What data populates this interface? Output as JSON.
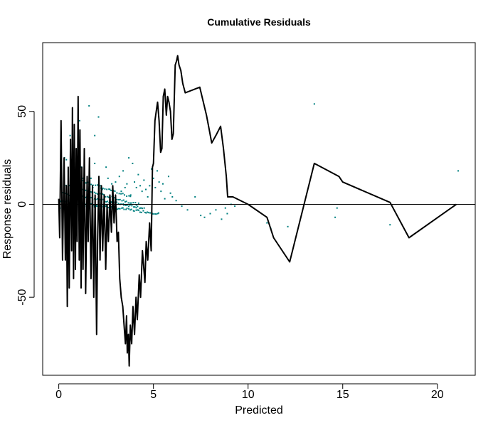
{
  "colors": {
    "background": "#ffffff",
    "axis": "#000000",
    "cumulative_line": "#000000",
    "points": "#008080",
    "reference_line": "#000000"
  },
  "chart_data": {
    "type": "scatter",
    "title": "Cumulative Residuals",
    "xlabel": "Predicted",
    "ylabel": "Response  residuals",
    "xlim": [
      -0.85,
      22.0
    ],
    "ylim": [
      -92,
      87
    ],
    "x_ticks": [
      0,
      5,
      10,
      15,
      20
    ],
    "x_tick_labels": [
      "0",
      "5",
      "10",
      "15",
      "20"
    ],
    "y_ticks": [
      -50,
      0,
      50
    ],
    "y_tick_labels": [
      "-50",
      "0",
      "50"
    ],
    "reference_line_y": 0,
    "grid": false,
    "series": [
      {
        "kind": "line",
        "values": [
          [
            0.0,
            3
          ],
          [
            0.05,
            -18
          ],
          [
            0.12,
            45
          ],
          [
            0.2,
            -30
          ],
          [
            0.28,
            25
          ],
          [
            0.35,
            -30
          ],
          [
            0.4,
            10
          ],
          [
            0.45,
            -55
          ],
          [
            0.5,
            20
          ],
          [
            0.55,
            -45
          ],
          [
            0.62,
            35
          ],
          [
            0.68,
            -25
          ],
          [
            0.72,
            52
          ],
          [
            0.78,
            -40
          ],
          [
            0.82,
            43
          ],
          [
            0.88,
            -35
          ],
          [
            0.92,
            30
          ],
          [
            0.97,
            -20
          ],
          [
            1.02,
            58
          ],
          [
            1.08,
            -30
          ],
          [
            1.12,
            40
          ],
          [
            1.18,
            -45
          ],
          [
            1.22,
            20
          ],
          [
            1.28,
            -35
          ],
          [
            1.35,
            30
          ],
          [
            1.42,
            -48
          ],
          [
            1.5,
            15
          ],
          [
            1.55,
            -20
          ],
          [
            1.62,
            25
          ],
          [
            1.7,
            -40
          ],
          [
            1.78,
            10
          ],
          [
            1.85,
            -50
          ],
          [
            1.92,
            5
          ],
          [
            2.0,
            -70
          ],
          [
            2.05,
            -20
          ],
          [
            2.12,
            15
          ],
          [
            2.18,
            -30
          ],
          [
            2.25,
            10
          ],
          [
            2.32,
            -25
          ],
          [
            2.4,
            5
          ],
          [
            2.48,
            -35
          ],
          [
            2.55,
            0
          ],
          [
            2.62,
            -20
          ],
          [
            2.7,
            5
          ],
          [
            2.78,
            -15
          ],
          [
            2.85,
            10
          ],
          [
            2.92,
            -10
          ],
          [
            3.0,
            5
          ],
          [
            3.08,
            -20
          ],
          [
            3.15,
            -15
          ],
          [
            3.22,
            -40
          ],
          [
            3.3,
            -50
          ],
          [
            3.38,
            -55
          ],
          [
            3.45,
            -65
          ],
          [
            3.52,
            -75
          ],
          [
            3.58,
            -60
          ],
          [
            3.62,
            -80
          ],
          [
            3.68,
            -70
          ],
          [
            3.72,
            -87
          ],
          [
            3.78,
            -65
          ],
          [
            3.85,
            -75
          ],
          [
            3.92,
            -55
          ],
          [
            4.0,
            -70
          ],
          [
            4.08,
            -50
          ],
          [
            4.15,
            -62
          ],
          [
            4.25,
            -38
          ],
          [
            4.32,
            -50
          ],
          [
            4.42,
            -25
          ],
          [
            4.55,
            -42
          ],
          [
            4.62,
            -20
          ],
          [
            4.7,
            -30
          ],
          [
            4.8,
            -10
          ],
          [
            4.88,
            -25
          ],
          [
            4.95,
            20
          ],
          [
            5.0,
            22
          ],
          [
            5.08,
            45
          ],
          [
            5.15,
            50
          ],
          [
            5.22,
            55
          ],
          [
            5.3,
            45
          ],
          [
            5.38,
            28
          ],
          [
            5.45,
            30
          ],
          [
            5.52,
            58
          ],
          [
            5.6,
            62
          ],
          [
            5.68,
            48
          ],
          [
            5.75,
            58
          ],
          [
            5.82,
            55
          ],
          [
            5.9,
            50
          ],
          [
            5.98,
            35
          ],
          [
            6.05,
            38
          ],
          [
            6.15,
            75
          ],
          [
            6.22,
            77
          ],
          [
            6.28,
            80
          ],
          [
            6.35,
            75
          ],
          [
            6.45,
            72
          ],
          [
            6.55,
            65
          ],
          [
            6.68,
            60
          ],
          [
            7.45,
            63
          ],
          [
            7.8,
            48
          ],
          [
            7.95,
            40
          ],
          [
            8.08,
            33
          ],
          [
            8.35,
            38
          ],
          [
            8.55,
            42
          ],
          [
            8.7,
            30
          ],
          [
            8.85,
            15
          ],
          [
            8.92,
            4
          ],
          [
            9.2,
            4
          ],
          [
            10.0,
            0
          ],
          [
            11.0,
            -7
          ],
          [
            11.35,
            -18
          ],
          [
            12.2,
            -31
          ],
          [
            13.5,
            22
          ],
          [
            14.8,
            15
          ],
          [
            15.0,
            12
          ],
          [
            17.5,
            1
          ],
          [
            18.5,
            -18
          ],
          [
            21.0,
            0
          ]
        ]
      },
      {
        "kind": "points",
        "values": [
          [
            0.3,
            25
          ],
          [
            0.6,
            37
          ],
          [
            1.1,
            45
          ],
          [
            1.6,
            53
          ],
          [
            2.1,
            47
          ],
          [
            1.9,
            37
          ],
          [
            0.4,
            24
          ],
          [
            0.5,
            18
          ],
          [
            0.9,
            17
          ],
          [
            1.2,
            20
          ],
          [
            1.3,
            14
          ],
          [
            1.5,
            12
          ],
          [
            1.7,
            14
          ],
          [
            1.8,
            9
          ],
          [
            1.9,
            22
          ],
          [
            2.2,
            10
          ],
          [
            2.3,
            8
          ],
          [
            2.5,
            20
          ],
          [
            2.6,
            14
          ],
          [
            2.7,
            8
          ],
          [
            2.8,
            11
          ],
          [
            3.0,
            12
          ],
          [
            3.2,
            15
          ],
          [
            3.3,
            7
          ],
          [
            3.4,
            18
          ],
          [
            3.5,
            9
          ],
          [
            3.6,
            11
          ],
          [
            3.7,
            25
          ],
          [
            3.8,
            5
          ],
          [
            3.9,
            22
          ],
          [
            4.0,
            12
          ],
          [
            4.1,
            9
          ],
          [
            4.2,
            16
          ],
          [
            4.3,
            10
          ],
          [
            4.4,
            7
          ],
          [
            4.5,
            13
          ],
          [
            4.6,
            8
          ],
          [
            4.7,
            4
          ],
          [
            4.8,
            10
          ],
          [
            4.9,
            19
          ],
          [
            5.0,
            14
          ],
          [
            5.1,
            9
          ],
          [
            5.2,
            18
          ],
          [
            5.3,
            12
          ],
          [
            5.4,
            7
          ],
          [
            5.5,
            11
          ],
          [
            5.6,
            3
          ],
          [
            5.8,
            15
          ],
          [
            5.9,
            6
          ],
          [
            6.0,
            4
          ],
          [
            6.2,
            2
          ],
          [
            6.5,
            -1
          ],
          [
            6.8,
            -3
          ],
          [
            7.2,
            4
          ],
          [
            7.5,
            -6
          ],
          [
            7.7,
            -7
          ],
          [
            8.0,
            -5
          ],
          [
            8.3,
            -3
          ],
          [
            8.6,
            -8
          ],
          [
            8.8,
            -2
          ],
          [
            8.9,
            -5
          ],
          [
            9.1,
            0
          ],
          [
            9.3,
            -1
          ],
          [
            11.0,
            -10
          ],
          [
            11.2,
            -13
          ],
          [
            12.1,
            -12
          ],
          [
            13.5,
            54
          ],
          [
            14.7,
            -2
          ],
          [
            14.6,
            -7
          ],
          [
            17.5,
            -11
          ],
          [
            21.1,
            18
          ]
        ],
        "bands": [
          {
            "x_from": 0.05,
            "x_to": 5.3,
            "y_from": 2,
            "y_to": -5,
            "count": 70
          },
          {
            "x_from": 0.2,
            "x_to": 4.5,
            "y_from": 6,
            "y_to": -2,
            "count": 55
          },
          {
            "x_from": 0.4,
            "x_to": 4.2,
            "y_from": 10,
            "y_to": 0,
            "count": 45
          },
          {
            "x_from": 0.8,
            "x_to": 3.8,
            "y_from": 14,
            "y_to": 4,
            "count": 30
          },
          {
            "x_from": 0.1,
            "x_to": 2.5,
            "y_from": -2,
            "y_to": -1,
            "count": 20
          }
        ]
      }
    ]
  }
}
